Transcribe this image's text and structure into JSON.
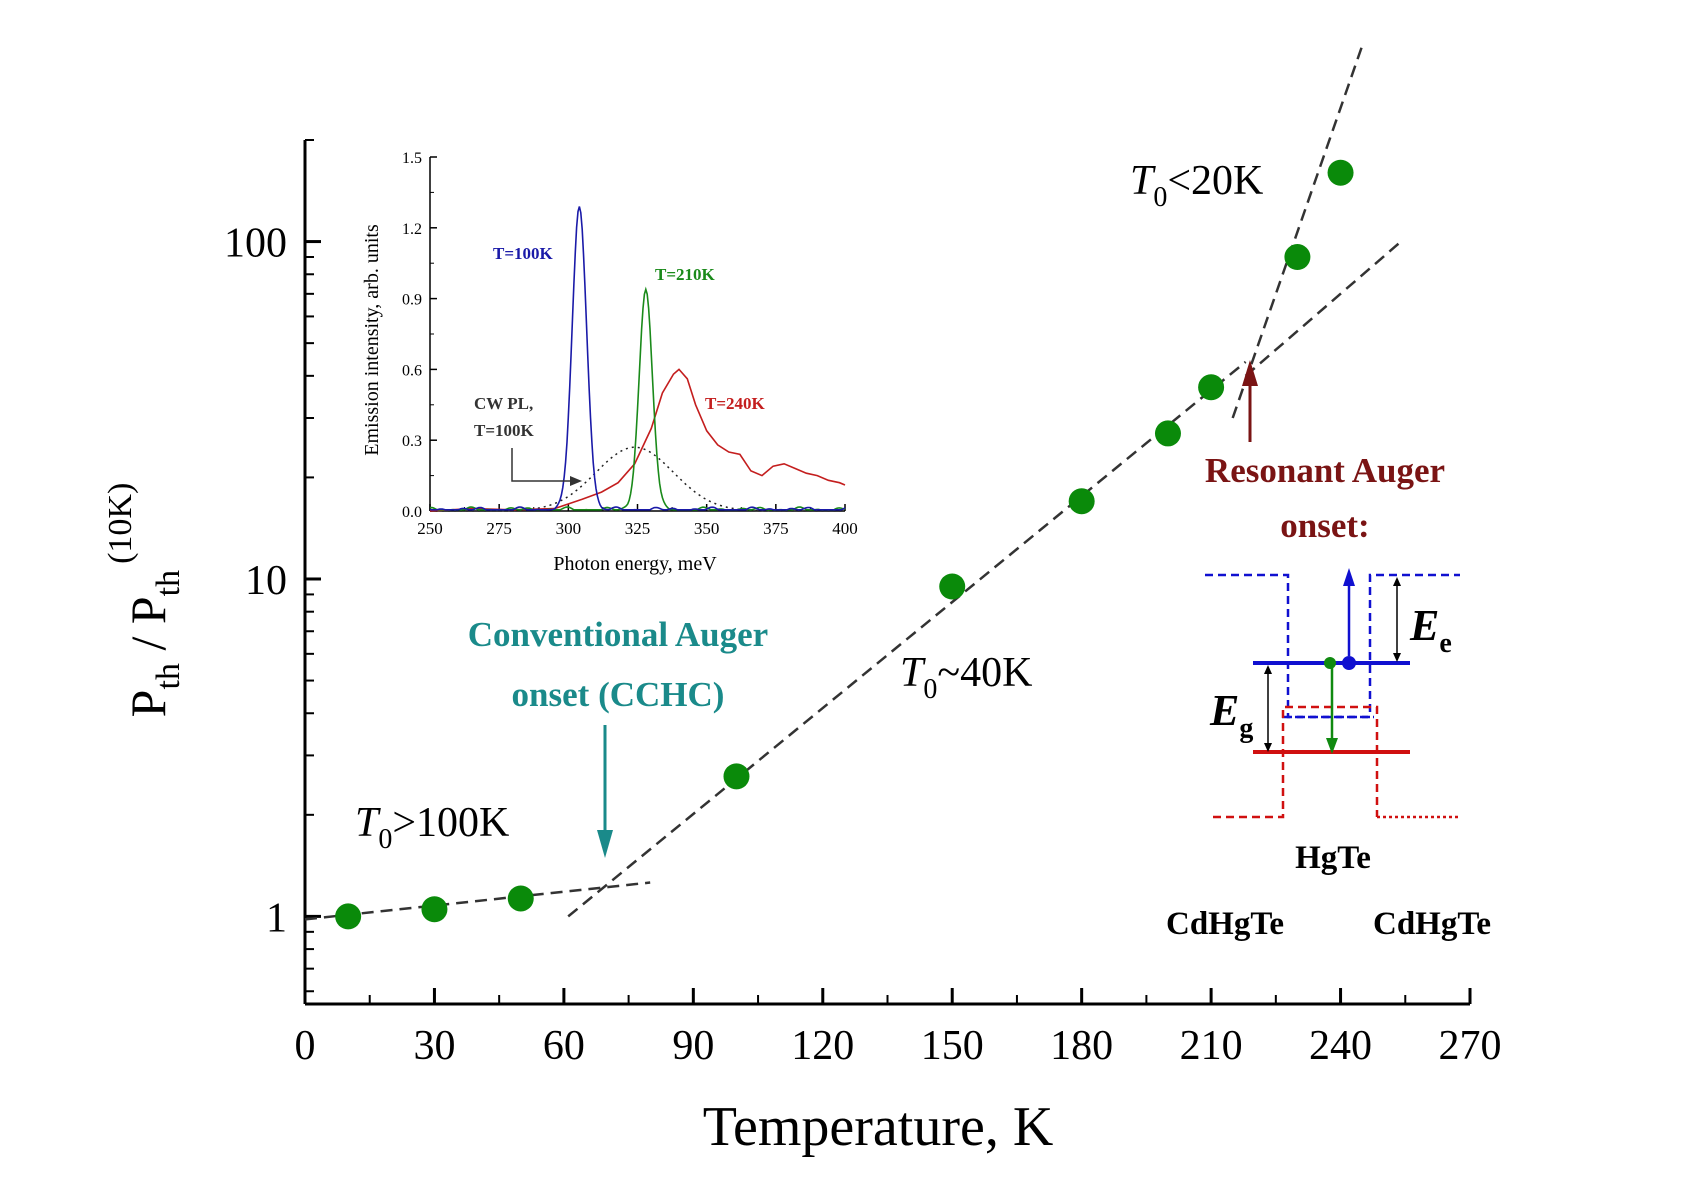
{
  "chart_data": [
    {
      "type": "scatter",
      "title": "",
      "xlabel": "Temperature, K",
      "ylabel": {
        "main": "P",
        "sub1": "th",
        "sep": " / P",
        "sub2": "th",
        "sup": "(10K)"
      },
      "xlim": [
        0,
        270
      ],
      "ylim": [
        0.55,
        200
      ],
      "yscale": "log",
      "xticks": [
        0,
        30,
        60,
        90,
        120,
        150,
        180,
        210,
        240,
        270
      ],
      "xtick_labels": [
        "0",
        "30",
        "60",
        "90",
        "120",
        "150",
        "180",
        "210",
        "240",
        "270"
      ],
      "yticks": [
        1,
        10,
        100
      ],
      "ytick_labels": [
        "1",
        "10",
        "100"
      ],
      "grid": false,
      "series": [
        {
          "color": "#0a8a0a",
          "points": [
            {
              "x": 10,
              "y": 1.0
            },
            {
              "x": 30,
              "y": 1.05
            },
            {
              "x": 50,
              "y": 1.13
            },
            {
              "x": 100,
              "y": 2.6
            },
            {
              "x": 150,
              "y": 9.5
            },
            {
              "x": 180,
              "y": 17
            },
            {
              "x": 200,
              "y": 27
            },
            {
              "x": 210,
              "y": 37
            },
            {
              "x": 230,
              "y": 90
            },
            {
              "x": 240,
              "y": 160
            }
          ]
        }
      ],
      "fit_lines": [
        {
          "x": [
            0,
            80
          ],
          "y": [
            0.98,
            1.26
          ]
        },
        {
          "x": [
            61,
            218
          ],
          "y": [
            1.0,
            44
          ]
        },
        {
          "x": [
            215,
            245
          ],
          "y": [
            30,
            380
          ]
        },
        {
          "x": [
            218,
            254
          ],
          "y": [
            40,
            100
          ]
        }
      ],
      "annotations": [
        {
          "id": "t0-low",
          "T": "T",
          "sub": "0",
          "rest": ">100K"
        },
        {
          "id": "t0-mid",
          "T": "T",
          "sub": "0",
          "rest": "~40K"
        },
        {
          "id": "t0-high",
          "T": "T",
          "sub": "0",
          "rest": "<20K"
        },
        {
          "id": "conv-auger",
          "lines": [
            "Conventional Auger",
            "onset (CCHC)"
          ],
          "color": "#1a8a8a",
          "arrow_x": 71,
          "arrow_y": 1.25
        },
        {
          "id": "res-auger",
          "lines": [
            "Resonant Auger",
            "onset:"
          ],
          "color": "#7a1414",
          "arrow_x": 221,
          "arrow_y": 44
        }
      ]
    },
    {
      "type": "line",
      "xlabel": "Photon energy, meV",
      "ylabel": "Emission intensity, arb. units",
      "xlim": [
        250,
        400
      ],
      "ylim": [
        0,
        1.5
      ],
      "xticks": [
        250,
        275,
        300,
        325,
        350,
        375,
        400
      ],
      "xtick_labels": [
        "250",
        "275",
        "300",
        "325",
        "350",
        "375",
        "400"
      ],
      "yticks": [
        0,
        0.3,
        0.6,
        0.9,
        1.2,
        1.5
      ],
      "ytick_labels": [
        "0.0",
        "0.3",
        "0.6",
        "0.9",
        "1.2",
        "1.5"
      ],
      "series": [
        {
          "name": "T=100K",
          "color": "#1a1aa8",
          "peak_x": 304,
          "peak_y": 1.28,
          "width": 2.6
        },
        {
          "name": "T=210K",
          "color": "#1a8a1a",
          "peak_x": 328,
          "peak_y": 0.93,
          "width": 2.4
        },
        {
          "name": "T=240K",
          "color": "#c41e1e",
          "x": [
            250,
            265,
            280,
            295,
            305,
            312,
            318,
            324,
            330,
            334,
            338,
            340,
            343,
            346,
            350,
            354,
            358,
            362,
            366,
            370,
            374,
            378,
            382,
            386,
            390,
            394,
            398,
            400
          ],
          "y": [
            0.0,
            0.01,
            0.005,
            0.01,
            0.05,
            0.08,
            0.12,
            0.2,
            0.35,
            0.5,
            0.58,
            0.6,
            0.56,
            0.45,
            0.34,
            0.28,
            0.25,
            0.24,
            0.17,
            0.15,
            0.19,
            0.2,
            0.18,
            0.16,
            0.15,
            0.13,
            0.12,
            0.11
          ]
        },
        {
          "name": "CW PL, T=100K",
          "color": "#222222",
          "style": "dotted",
          "peak_x": 324,
          "peak_y": 0.27,
          "width": 14
        }
      ],
      "labels": {
        "cw_line1": "CW PL,",
        "cw_line2": "T=100K"
      }
    }
  ],
  "diagram": {
    "left_label": "CdHgTe",
    "center_label": "HgTe",
    "right_label": "CdHgTe",
    "ee_label": {
      "main": "E",
      "sub": "e"
    },
    "eg_label": {
      "main": "E",
      "sub": "g"
    },
    "colors": {
      "conduction": "#1010d0",
      "valence": "#d01010",
      "transition": "#108a10"
    }
  }
}
